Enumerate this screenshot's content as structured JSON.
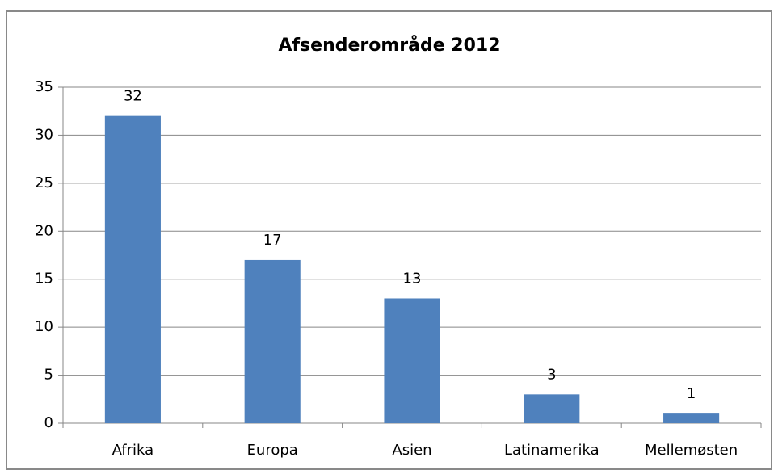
{
  "chart_data": {
    "type": "bar",
    "title": "Afsenderområde 2012",
    "categories": [
      "Afrika",
      "Europa",
      "Asien",
      "Latinamerika",
      "Mellemøsten"
    ],
    "values": [
      32,
      17,
      13,
      3,
      1
    ],
    "color": "#4f81bd",
    "ylim": [
      0,
      35
    ],
    "yticks": [
      0,
      5,
      10,
      15,
      20,
      25,
      30,
      35
    ],
    "grid": true
  }
}
